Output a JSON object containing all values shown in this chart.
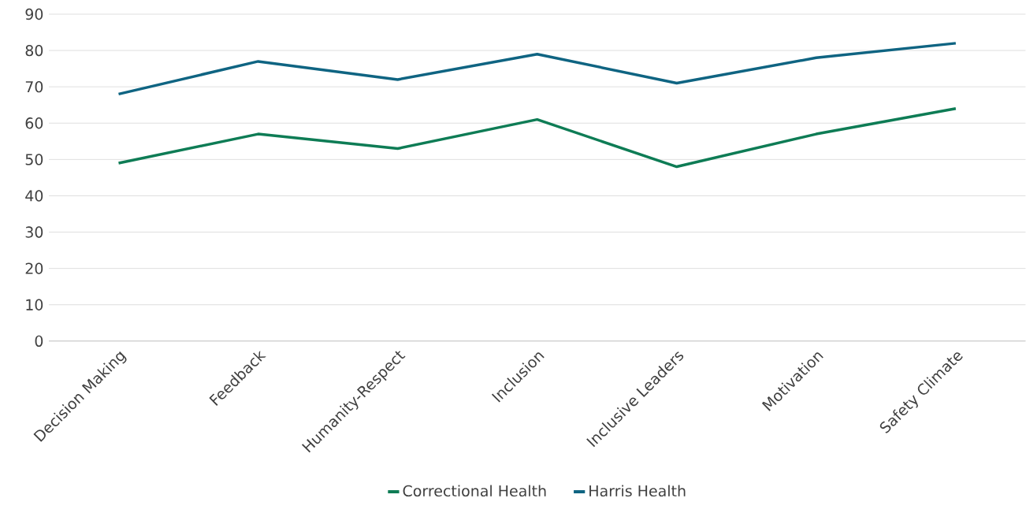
{
  "chart_data": {
    "type": "line",
    "categories": [
      "Decision Making",
      "Feedback",
      "Humanity-Respect",
      "Inclusion",
      "Inclusive Leaders",
      "Motivation",
      "Safety Climate"
    ],
    "series": [
      {
        "name": "Correctional Health",
        "color": "#0e7c55",
        "values": [
          49,
          57,
          53,
          61,
          48,
          57,
          64
        ]
      },
      {
        "name": "Harris Health",
        "color": "#0f6482",
        "values": [
          68,
          77,
          72,
          79,
          71,
          78,
          82
        ]
      }
    ],
    "ylim": [
      0,
      90
    ],
    "yticks": [
      0,
      10,
      20,
      30,
      40,
      50,
      60,
      70,
      80,
      90
    ],
    "grid": "y",
    "legend": "bottom",
    "marker": "none",
    "line_style": "solid"
  }
}
